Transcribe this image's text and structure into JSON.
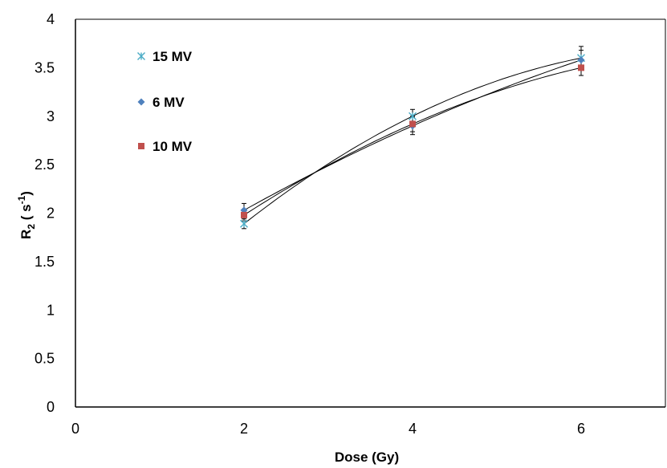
{
  "chart_data": {
    "type": "scatter",
    "xlabel": "Dose (Gy)",
    "ylabel_main": "R",
    "ylabel_sub": "2",
    "ylabel_mid": " ( s",
    "ylabel_sup": "-1",
    "ylabel_end": ")",
    "xlim": [
      0,
      7
    ],
    "ylim": [
      0,
      4
    ],
    "x_ticks": [
      0,
      2,
      4,
      6
    ],
    "y_ticks": [
      0,
      0.5,
      1,
      1.5,
      2,
      2.5,
      3,
      3.5,
      4
    ],
    "x_tick_labels": [
      "0",
      "2",
      "4",
      "6"
    ],
    "y_tick_labels": [
      "0",
      "0.5",
      "1",
      "1.5",
      "2",
      "2.5",
      "3",
      "3.5",
      "4"
    ],
    "grid": false,
    "legend_position": "top-left",
    "trendline": "polynomial",
    "series": [
      {
        "name": "15 MV",
        "marker": "asterisk",
        "color": "#4bacc6",
        "x": [
          2,
          4,
          6
        ],
        "y": [
          1.89,
          3.0,
          3.6
        ],
        "err": [
          0.05,
          0.07,
          0.12
        ]
      },
      {
        "name": "6 MV",
        "marker": "diamond",
        "color": "#4f81bd",
        "x": [
          2,
          4,
          6
        ],
        "y": [
          2.03,
          2.9,
          3.58
        ],
        "err": [
          0.07,
          0.09,
          0.1
        ]
      },
      {
        "name": "10 MV",
        "marker": "square",
        "color": "#c0504d",
        "x": [
          2,
          4,
          6
        ],
        "y": [
          1.98,
          2.92,
          3.5
        ],
        "err": [
          0.06,
          0.08,
          0.08
        ]
      }
    ]
  }
}
